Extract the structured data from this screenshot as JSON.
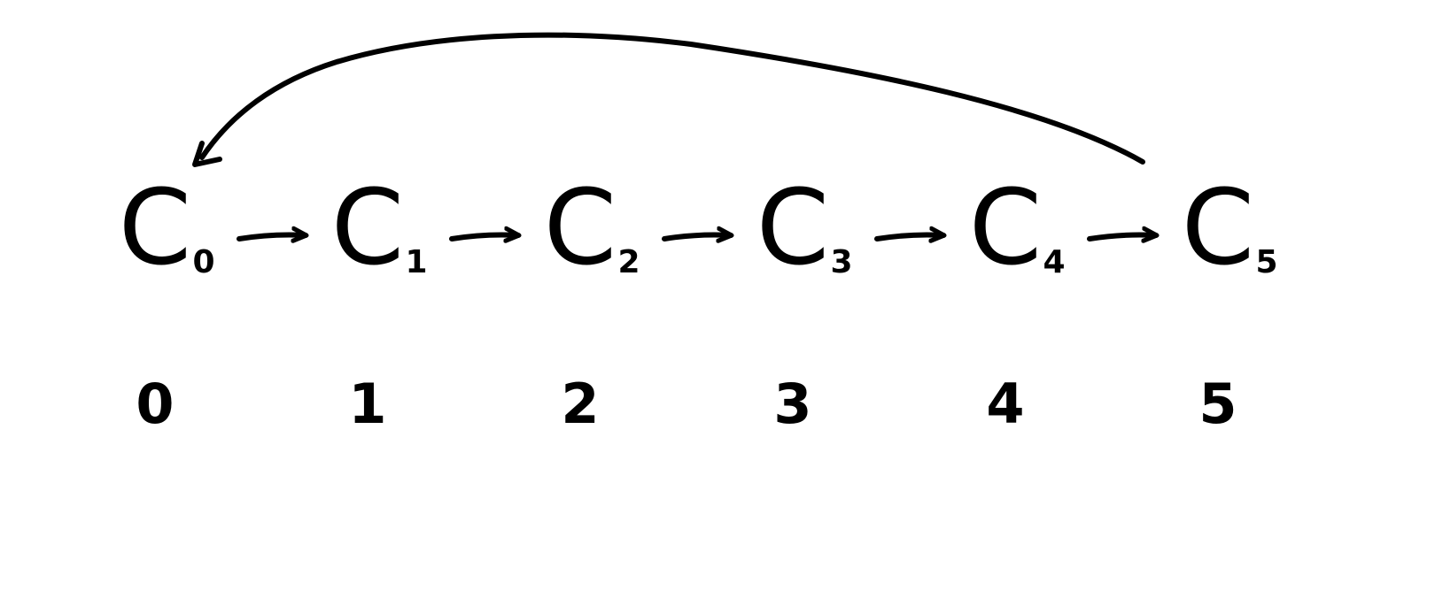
{
  "diagram": {
    "type": "cycle",
    "nodes": [
      {
        "letter": "C",
        "subscript": "0",
        "index_label": "0"
      },
      {
        "letter": "C",
        "subscript": "1",
        "index_label": "1"
      },
      {
        "letter": "C",
        "subscript": "2",
        "index_label": "2"
      },
      {
        "letter": "C",
        "subscript": "3",
        "index_label": "3"
      },
      {
        "letter": "C",
        "subscript": "4",
        "index_label": "4"
      },
      {
        "letter": "C",
        "subscript": "5",
        "index_label": "5"
      }
    ],
    "edges": [
      {
        "from": 0,
        "to": 1
      },
      {
        "from": 1,
        "to": 2
      },
      {
        "from": 2,
        "to": 3
      },
      {
        "from": 3,
        "to": 4
      },
      {
        "from": 4,
        "to": 5
      },
      {
        "from": 5,
        "to": 0,
        "curved": true
      }
    ],
    "colors": {
      "ink": "#000000",
      "background": "#ffffff"
    }
  }
}
